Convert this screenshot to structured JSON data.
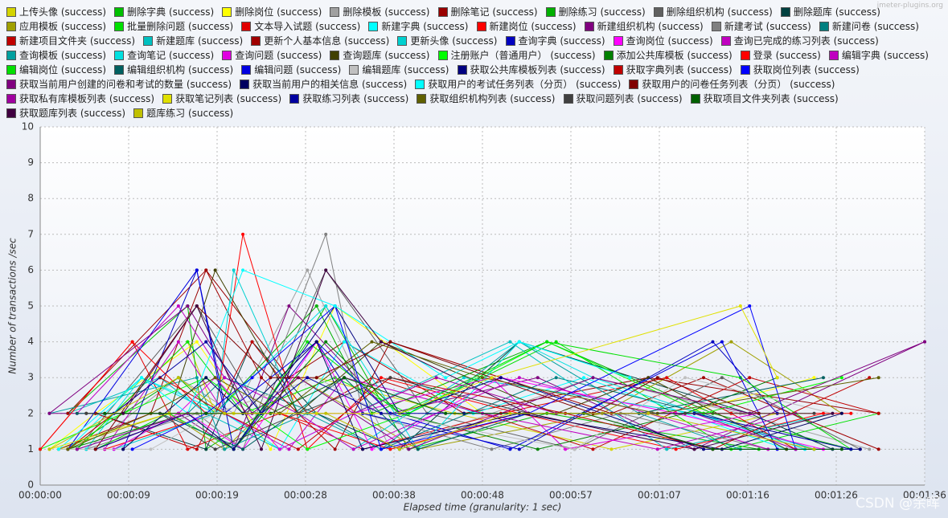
{
  "chart_data": {
    "type": "line",
    "watermark": "jmeter-plugins.org",
    "credit": "CSDN @余晖",
    "xlabel": "Elapsed time (granularity: 1 sec)",
    "ylabel": "Number of transactions /sec",
    "xlim": [
      0,
      96
    ],
    "ylim": [
      0,
      10
    ],
    "xticks": [
      {
        "value": 0,
        "label": "00:00:00"
      },
      {
        "value": 9.6,
        "label": "00:00:09"
      },
      {
        "value": 19.2,
        "label": "00:00:19"
      },
      {
        "value": 28.8,
        "label": "00:00:28"
      },
      {
        "value": 38.4,
        "label": "00:00:38"
      },
      {
        "value": 48,
        "label": "00:00:48"
      },
      {
        "value": 57.6,
        "label": "00:00:57"
      },
      {
        "value": 67.2,
        "label": "00:01:07"
      },
      {
        "value": 76.8,
        "label": "00:01:16"
      },
      {
        "value": 86.4,
        "label": "00:01:26"
      },
      {
        "value": 96,
        "label": "00:01:36"
      }
    ],
    "yticks": [
      0,
      1,
      2,
      3,
      4,
      5,
      6,
      7,
      8,
      9,
      10
    ],
    "grid": true,
    "series": [
      {
        "name": "上传头像 (success)",
        "color": "#d4d400",
        "x": [
          2,
          4,
          16,
          19,
          30,
          45,
          62,
          80
        ],
        "values": [
          1,
          1,
          4,
          2,
          3,
          2,
          1,
          2
        ]
      },
      {
        "name": "删除字典 (success)",
        "color": "#00c000",
        "x": [
          3,
          16,
          18,
          24,
          31,
          40,
          55,
          78
        ],
        "values": [
          2,
          5,
          1,
          2,
          5,
          1,
          2,
          1
        ]
      },
      {
        "name": "删除岗位 (success)",
        "color": "#ffff00",
        "x": [
          1,
          6,
          17,
          25,
          32,
          48,
          70,
          84
        ],
        "values": [
          1,
          2,
          4,
          1,
          5,
          2,
          2,
          3
        ]
      },
      {
        "name": "删除模板 (success)",
        "color": "#a0a0a0",
        "x": [
          5,
          15,
          21,
          29,
          38,
          60,
          76,
          90
        ],
        "values": [
          1,
          3,
          2,
          6,
          1,
          3,
          2,
          1
        ]
      },
      {
        "name": "删除笔记 (success)",
        "color": "#990000",
        "x": [
          2,
          12,
          18,
          27,
          33,
          46,
          66,
          91
        ],
        "values": [
          1,
          2,
          6,
          3,
          4,
          2,
          3,
          2
        ]
      },
      {
        "name": "删除练习 (success)",
        "color": "#00b000",
        "x": [
          3,
          15,
          19,
          30,
          36,
          55,
          73,
          88
        ],
        "values": [
          1,
          3,
          2,
          5,
          2,
          4,
          2,
          1
        ]
      },
      {
        "name": "删除组织机构 (success)",
        "color": "#606060",
        "x": [
          4,
          17,
          24,
          31,
          42,
          58,
          74,
          89
        ],
        "values": [
          1,
          5,
          2,
          6,
          2,
          1,
          3,
          1
        ]
      },
      {
        "name": "删除题库 (success)",
        "color": "#004040",
        "x": [
          6,
          18,
          23,
          30,
          39,
          52,
          77,
          86
        ],
        "values": [
          2,
          1,
          4,
          2,
          1,
          4,
          2,
          1
        ]
      },
      {
        "name": "应用模板 (success)",
        "color": "#a0a000",
        "x": [
          2,
          14,
          20,
          28,
          41,
          61,
          75,
          87
        ],
        "values": [
          1,
          2,
          1,
          3,
          1,
          2,
          4,
          2
        ]
      },
      {
        "name": "批量删除问题 (success)",
        "color": "#00e000",
        "x": [
          4,
          16,
          22,
          32,
          40,
          56,
          75,
          91
        ],
        "values": [
          1,
          4,
          2,
          3,
          2,
          4,
          1,
          2
        ]
      },
      {
        "name": "文本导入试题 (success)",
        "color": "#e00000",
        "x": [
          0,
          10,
          16,
          26,
          35,
          50,
          68,
          82
        ],
        "values": [
          1,
          4,
          1,
          2,
          1,
          2,
          3,
          1
        ]
      },
      {
        "name": "新建字典 (success)",
        "color": "#00ffff",
        "x": [
          3,
          11,
          20,
          26,
          33,
          47,
          59,
          81
        ],
        "values": [
          1,
          3,
          2,
          1,
          4,
          2,
          3,
          1
        ]
      },
      {
        "name": "新建岗位 (success)",
        "color": "#ff0000",
        "x": [
          7,
          19,
          22,
          29,
          37,
          52,
          69,
          85
        ],
        "values": [
          1,
          2,
          7,
          1,
          3,
          2,
          1,
          2
        ]
      },
      {
        "name": "新建组织机构 (success)",
        "color": "#800080",
        "x": [
          1,
          15,
          21,
          27,
          38,
          54,
          71,
          96
        ],
        "values": [
          2,
          2,
          1,
          5,
          2,
          3,
          1,
          4
        ]
      },
      {
        "name": "新建考试 (success)",
        "color": "#808080",
        "x": [
          5,
          17,
          22,
          31,
          35,
          49,
          63,
          79
        ],
        "values": [
          1,
          2,
          1,
          7,
          2,
          1,
          2,
          1
        ]
      },
      {
        "name": "新建问卷 (success)",
        "color": "#008080",
        "x": [
          4,
          16,
          20,
          30,
          37,
          56,
          72,
          84
        ],
        "values": [
          1,
          2,
          3,
          2,
          1,
          3,
          2,
          1
        ]
      },
      {
        "name": "新建项目文件夹 (success)",
        "color": "#c00000",
        "x": [
          6,
          17,
          23,
          29,
          36,
          60,
          77,
          91
        ],
        "values": [
          2,
          1,
          4,
          2,
          3,
          1,
          3,
          2
        ]
      },
      {
        "name": "新建题库 (success)",
        "color": "#00c0c0",
        "x": [
          3,
          13,
          18,
          26,
          34,
          51,
          68,
          86
        ],
        "values": [
          2,
          3,
          2,
          1,
          2,
          4,
          1,
          2
        ]
      },
      {
        "name": "更新个人基本信息 (success)",
        "color": "#a00000",
        "x": [
          3,
          18,
          24,
          32,
          38,
          62,
          72,
          91
        ],
        "values": [
          2,
          6,
          3,
          1,
          4,
          2,
          3,
          1
        ]
      },
      {
        "name": "更新头像 (success)",
        "color": "#00d0d0",
        "x": [
          8,
          19,
          21,
          28,
          34,
          46,
          71,
          84
        ],
        "values": [
          1,
          2,
          6,
          2,
          1,
          3,
          2,
          1
        ]
      },
      {
        "name": "查询字典 (success)",
        "color": "#0000c0",
        "x": [
          9,
          17,
          21,
          30,
          35,
          52,
          73,
          80
        ],
        "values": [
          1,
          6,
          1,
          4,
          2,
          1,
          4,
          2
        ]
      },
      {
        "name": "查询岗位 (success)",
        "color": "#ff00ff",
        "x": [
          6,
          16,
          22,
          30,
          36,
          50,
          69,
          85
        ],
        "values": [
          1,
          2,
          1,
          4,
          1,
          3,
          2,
          1
        ]
      },
      {
        "name": "查询已完成的练习列表 (success)",
        "color": "#c000c0",
        "x": [
          7,
          15,
          20,
          27,
          33,
          48,
          67,
          82
        ],
        "values": [
          1,
          4,
          2,
          1,
          3,
          2,
          1,
          2
        ]
      },
      {
        "name": "查询模板 (success)",
        "color": "#00a0a0",
        "x": [
          1,
          17,
          20,
          29,
          37,
          52,
          65,
          76
        ],
        "values": [
          2,
          3,
          1,
          2,
          1,
          4,
          2,
          1
        ]
      },
      {
        "name": "查询笔记 (success)",
        "color": "#00e0e0",
        "x": [
          5,
          11,
          19,
          31,
          41,
          52,
          60,
          83
        ],
        "values": [
          1,
          3,
          2,
          5,
          1,
          4,
          3,
          1
        ]
      },
      {
        "name": "查询问题 (success)",
        "color": "#e000e0",
        "x": [
          8,
          15,
          19,
          26,
          34,
          49,
          57,
          78
        ],
        "values": [
          1,
          2,
          3,
          1,
          2,
          3,
          1,
          2
        ]
      },
      {
        "name": "查询题库 (success)",
        "color": "#404000",
        "x": [
          5,
          14,
          19,
          28,
          37,
          56,
          66,
          81
        ],
        "values": [
          2,
          2,
          6,
          2,
          4,
          2,
          3,
          1
        ]
      },
      {
        "name": "注册账户（普通用户） (success)",
        "color": "#00ff00",
        "x": [
          0,
          9,
          18,
          29,
          40,
          55,
          72,
          87
        ],
        "values": [
          1,
          2,
          3,
          1,
          2,
          4,
          2,
          3
        ]
      },
      {
        "name": "添加公共库模板 (success)",
        "color": "#008000",
        "x": [
          3,
          16,
          21,
          31,
          39,
          54,
          70,
          80
        ],
        "values": [
          1,
          2,
          1,
          4,
          2,
          1,
          2,
          3
        ]
      },
      {
        "name": "登录 (success)",
        "color": "#ff0000",
        "x": [
          0,
          10,
          18,
          26,
          38,
          53,
          75,
          88
        ],
        "values": [
          1,
          4,
          2,
          2,
          1,
          2,
          2,
          2
        ]
      },
      {
        "name": "编辑字典 (success)",
        "color": "#c000c0",
        "x": [
          4,
          15,
          20,
          28,
          34,
          52,
          66,
          79
        ],
        "values": [
          2,
          5,
          3,
          2,
          1,
          3,
          2,
          1
        ]
      },
      {
        "name": "编辑岗位 (success)",
        "color": "#00e000",
        "x": [
          6,
          14,
          21,
          29,
          39,
          55,
          76,
          88
        ],
        "values": [
          1,
          2,
          1,
          4,
          2,
          4,
          3,
          1
        ]
      },
      {
        "name": "编辑组织机构 (success)",
        "color": "#006060",
        "x": [
          4,
          13,
          22,
          33,
          41,
          53,
          65,
          85
        ],
        "values": [
          2,
          2,
          1,
          3,
          1,
          2,
          2,
          3
        ]
      },
      {
        "name": "编辑问题 (success)",
        "color": "#0000e0",
        "x": [
          3,
          17,
          20,
          30,
          38,
          51,
          74,
          80
        ],
        "values": [
          1,
          6,
          2,
          4,
          2,
          1,
          4,
          1
        ]
      },
      {
        "name": "编辑题库 (success)",
        "color": "#c0c0c0",
        "x": [
          2,
          12,
          19,
          30,
          37,
          58,
          70,
          86
        ],
        "values": [
          1,
          1,
          2,
          3,
          2,
          1,
          3,
          2
        ]
      },
      {
        "name": "获取公共库模板列表 (success)",
        "color": "#000080",
        "x": [
          6,
          16,
          21,
          32,
          39,
          50,
          72,
          89
        ],
        "values": [
          1,
          2,
          1,
          5,
          2,
          3,
          1,
          1
        ]
      },
      {
        "name": "获取字典列表 (success)",
        "color": "#c00000",
        "x": [
          3,
          13,
          20,
          28,
          38,
          57,
          73,
          90
        ],
        "values": [
          1,
          3,
          2,
          1,
          3,
          2,
          1,
          3
        ]
      },
      {
        "name": "获取岗位列表 (success)",
        "color": "#0000ff",
        "x": [
          10,
          18,
          23,
          32,
          37,
          53,
          77,
          82
        ],
        "values": [
          1,
          2,
          3,
          5,
          1,
          2,
          5,
          1
        ]
      },
      {
        "name": "获取当前用户创建的问卷和考试的数量 (success)",
        "color": "#800080",
        "x": [
          1,
          16,
          23,
          28,
          40,
          60,
          77,
          96
        ],
        "values": [
          2,
          5,
          2,
          3,
          1,
          3,
          2,
          4
        ]
      },
      {
        "name": "获取当前用户的相关信息 (success)",
        "color": "#000060",
        "x": [
          9,
          18,
          22,
          30,
          35,
          52,
          74,
          87
        ],
        "values": [
          1,
          3,
          2,
          4,
          1,
          2,
          1,
          2
        ]
      },
      {
        "name": "获取用户的考试任务列表（分页） (success)",
        "color": "#00ffff",
        "x": [
          2,
          11,
          16,
          22,
          32,
          44,
          52,
          64
        ],
        "values": [
          1,
          3,
          2,
          6,
          5,
          3,
          4,
          3
        ]
      },
      {
        "name": "获取用户的问卷任务列表（分页） (success)",
        "color": "#800000",
        "x": [
          6,
          17,
          25,
          30,
          38,
          60,
          67,
          78
        ],
        "values": [
          1,
          5,
          3,
          3,
          4,
          2,
          3,
          2
        ]
      },
      {
        "name": "获取私有库模板列表 (success)",
        "color": "#a000a0",
        "x": [
          4,
          16,
          26,
          34,
          43,
          56,
          71,
          82
        ],
        "values": [
          1,
          2,
          2,
          2,
          3,
          2,
          2,
          1
        ]
      },
      {
        "name": "获取笔记列表 (success)",
        "color": "#e0e000",
        "x": [
          1,
          14,
          21,
          30,
          39,
          49,
          76,
          80
        ],
        "values": [
          1,
          2,
          2,
          2,
          2,
          3,
          5,
          3
        ]
      },
      {
        "name": "获取练习列表 (success)",
        "color": "#0000a0",
        "x": [
          8,
          18,
          24,
          29,
          37,
          46,
          71,
          88
        ],
        "values": [
          2,
          4,
          2,
          3,
          2,
          2,
          2,
          1
        ]
      },
      {
        "name": "获取组织机构列表 (success)",
        "color": "#606000",
        "x": [
          3,
          12,
          19,
          26,
          36,
          48,
          67,
          91
        ],
        "values": [
          1,
          2,
          3,
          2,
          4,
          3,
          2,
          3
        ]
      },
      {
        "name": "获取问题列表 (success)",
        "color": "#404040",
        "x": [
          5,
          13,
          19,
          28,
          38,
          53,
          70,
          84
        ],
        "values": [
          2,
          2,
          1,
          2,
          3,
          2,
          2,
          2
        ]
      },
      {
        "name": "获取项目文件夹列表 (success)",
        "color": "#006000",
        "x": [
          7,
          18,
          25,
          33,
          44,
          59,
          73,
          87
        ],
        "values": [
          2,
          2,
          2,
          3,
          2,
          2,
          1,
          1
        ]
      },
      {
        "name": "获取题库列表 (success)",
        "color": "#400040",
        "x": [
          9,
          17,
          24,
          31,
          37,
          53,
          71,
          86
        ],
        "values": [
          2,
          5,
          1,
          6,
          4,
          2,
          1,
          2
        ]
      },
      {
        "name": "题库练习 (success)",
        "color": "#c0c000",
        "x": [
          1,
          15,
          20,
          31,
          39,
          51,
          66,
          84
        ],
        "values": [
          1,
          3,
          2,
          2,
          1,
          2,
          2,
          1
        ]
      }
    ]
  }
}
